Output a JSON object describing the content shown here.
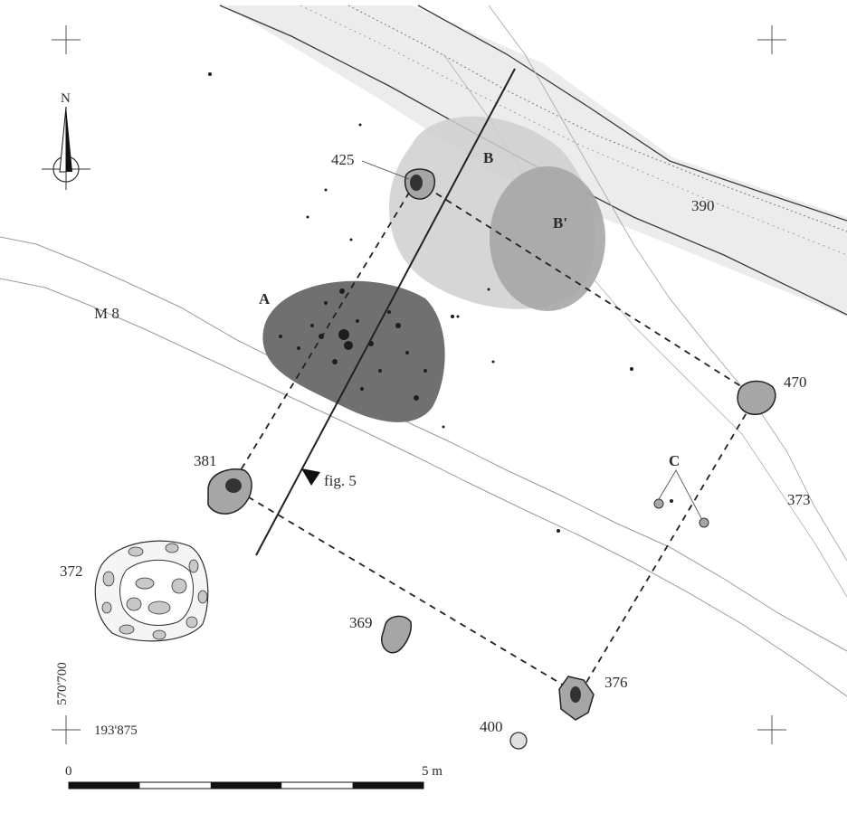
{
  "north": {
    "label": "N"
  },
  "features": {
    "f425": "425",
    "f390": "390",
    "f470": "470",
    "f373": "373",
    "f381": "381",
    "f372": "372",
    "f369": "369",
    "f376": "376",
    "f400": "400"
  },
  "zones": {
    "A": "A",
    "B": "B",
    "B_prime": "B'",
    "C": "C"
  },
  "road": {
    "label": "M 8"
  },
  "section": {
    "label": "fig. 5"
  },
  "coordinates": {
    "easting": "193'875",
    "northing": "570'700"
  },
  "scale": {
    "start": "0",
    "end": "5 m"
  },
  "colors": {
    "dark_fill": "#707070",
    "mid_fill": "#a6a6a6",
    "light_fill": "#cfcfcf",
    "pale_band": "#ebebeb",
    "line": "#333333",
    "contour": "#9a9a9a"
  }
}
